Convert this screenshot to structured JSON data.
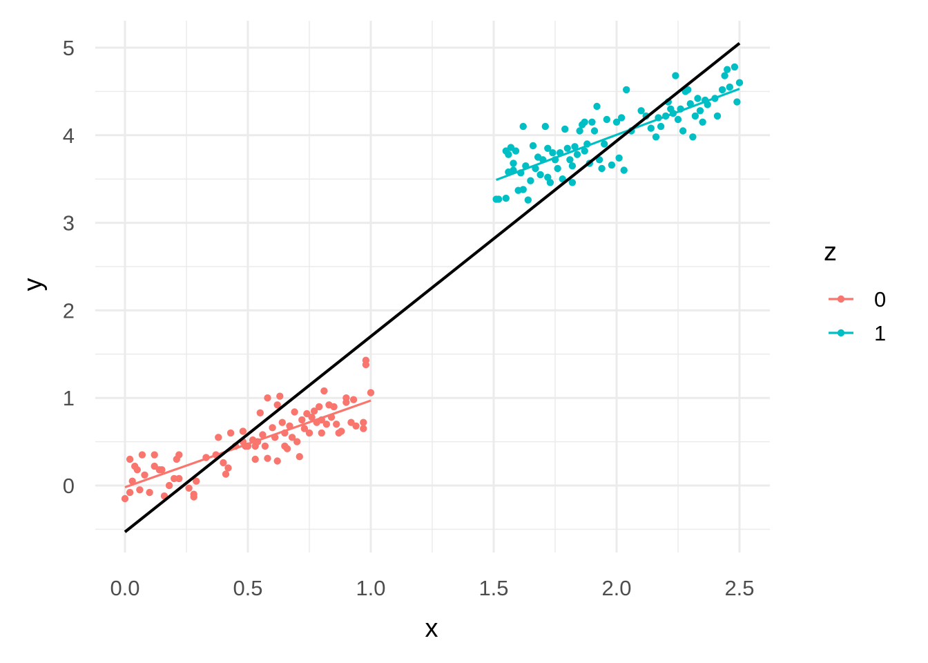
{
  "chart_data": {
    "type": "scatter",
    "xlabel": "x",
    "ylabel": "y",
    "xlim": [
      -0.13,
      2.62
    ],
    "ylim": [
      -0.72,
      5.32
    ],
    "x_ticks": [
      0.0,
      0.5,
      1.0,
      1.5,
      2.0,
      2.5
    ],
    "x_tick_labels": [
      "0.0",
      "0.5",
      "1.0",
      "1.5",
      "2.0",
      "2.5"
    ],
    "y_ticks": [
      0,
      1,
      2,
      3,
      4,
      5
    ],
    "y_tick_labels": [
      "0",
      "1",
      "2",
      "3",
      "4",
      "5"
    ],
    "grid": true,
    "legend": {
      "title": "z",
      "position": "right",
      "entries": [
        "0",
        "1"
      ]
    },
    "colors": {
      "0": "#F8766D",
      "1": "#00BFC4",
      "overall_line": "#000000"
    },
    "overall_fit": {
      "x": [
        0.0,
        2.5
      ],
      "y": [
        -0.53,
        5.05
      ]
    },
    "series": [
      {
        "name": "0",
        "color": "#F8766D",
        "fit": {
          "x": [
            0.0,
            1.0
          ],
          "y": [
            -0.02,
            0.97
          ]
        },
        "points": [
          [
            0.0,
            -0.15
          ],
          [
            0.02,
            0.3
          ],
          [
            0.02,
            -0.08
          ],
          [
            0.03,
            0.05
          ],
          [
            0.04,
            0.22
          ],
          [
            0.05,
            0.18
          ],
          [
            0.06,
            -0.05
          ],
          [
            0.07,
            0.35
          ],
          [
            0.08,
            0.12
          ],
          [
            0.1,
            -0.08
          ],
          [
            0.12,
            0.22
          ],
          [
            0.12,
            0.35
          ],
          [
            0.14,
            0.18
          ],
          [
            0.15,
            0.18
          ],
          [
            0.16,
            -0.12
          ],
          [
            0.18,
            0.0
          ],
          [
            0.2,
            0.08
          ],
          [
            0.21,
            0.3
          ],
          [
            0.22,
            0.35
          ],
          [
            0.22,
            0.08
          ],
          [
            0.26,
            -0.03
          ],
          [
            0.28,
            -0.1
          ],
          [
            0.28,
            -0.13
          ],
          [
            0.29,
            0.05
          ],
          [
            0.33,
            0.32
          ],
          [
            0.37,
            0.35
          ],
          [
            0.38,
            0.55
          ],
          [
            0.4,
            0.26
          ],
          [
            0.41,
            0.13
          ],
          [
            0.42,
            0.2
          ],
          [
            0.43,
            0.6
          ],
          [
            0.45,
            0.45
          ],
          [
            0.48,
            0.5
          ],
          [
            0.48,
            0.62
          ],
          [
            0.49,
            0.45
          ],
          [
            0.5,
            0.45
          ],
          [
            0.52,
            0.52
          ],
          [
            0.53,
            0.45
          ],
          [
            0.53,
            0.3
          ],
          [
            0.54,
            0.5
          ],
          [
            0.55,
            0.83
          ],
          [
            0.56,
            0.58
          ],
          [
            0.57,
            0.45
          ],
          [
            0.58,
            1.0
          ],
          [
            0.58,
            0.31
          ],
          [
            0.6,
            0.66
          ],
          [
            0.61,
            0.55
          ],
          [
            0.62,
            0.28
          ],
          [
            0.62,
            0.92
          ],
          [
            0.63,
            1.02
          ],
          [
            0.64,
            0.72
          ],
          [
            0.65,
            0.6
          ],
          [
            0.65,
            0.45
          ],
          [
            0.66,
            0.42
          ],
          [
            0.67,
            0.68
          ],
          [
            0.68,
            0.55
          ],
          [
            0.69,
            0.84
          ],
          [
            0.7,
            0.5
          ],
          [
            0.71,
            0.33
          ],
          [
            0.72,
            0.75
          ],
          [
            0.73,
            0.65
          ],
          [
            0.74,
            0.82
          ],
          [
            0.75,
            0.6
          ],
          [
            0.76,
            0.78
          ],
          [
            0.77,
            0.85
          ],
          [
            0.78,
            0.72
          ],
          [
            0.79,
            0.9
          ],
          [
            0.8,
            0.75
          ],
          [
            0.8,
            0.6
          ],
          [
            0.81,
            1.08
          ],
          [
            0.82,
            0.7
          ],
          [
            0.83,
            0.92
          ],
          [
            0.84,
            0.78
          ],
          [
            0.85,
            0.9
          ],
          [
            0.86,
            0.7
          ],
          [
            0.87,
            0.6
          ],
          [
            0.88,
            0.62
          ],
          [
            0.9,
            1.0
          ],
          [
            0.9,
            0.95
          ],
          [
            0.92,
            0.72
          ],
          [
            0.93,
            0.98
          ],
          [
            0.94,
            0.68
          ],
          [
            0.97,
            0.65
          ],
          [
            0.97,
            0.72
          ],
          [
            0.98,
            1.43
          ],
          [
            0.98,
            1.38
          ],
          [
            1.0,
            1.06
          ]
        ]
      },
      {
        "name": "1",
        "color": "#00BFC4",
        "fit": {
          "x": [
            1.51,
            2.5
          ],
          "y": [
            3.49,
            4.53
          ]
        },
        "points": [
          [
            1.51,
            3.27
          ],
          [
            1.52,
            3.27
          ],
          [
            1.55,
            3.28
          ],
          [
            1.55,
            3.82
          ],
          [
            1.56,
            3.78
          ],
          [
            1.56,
            3.58
          ],
          [
            1.57,
            3.86
          ],
          [
            1.58,
            3.68
          ],
          [
            1.58,
            3.6
          ],
          [
            1.59,
            3.82
          ],
          [
            1.6,
            3.37
          ],
          [
            1.61,
            3.57
          ],
          [
            1.62,
            4.1
          ],
          [
            1.62,
            3.38
          ],
          [
            1.63,
            3.65
          ],
          [
            1.64,
            3.26
          ],
          [
            1.65,
            3.48
          ],
          [
            1.66,
            3.88
          ],
          [
            1.67,
            3.62
          ],
          [
            1.68,
            3.75
          ],
          [
            1.69,
            3.55
          ],
          [
            1.7,
            3.72
          ],
          [
            1.71,
            4.1
          ],
          [
            1.72,
            3.85
          ],
          [
            1.72,
            3.52
          ],
          [
            1.73,
            3.46
          ],
          [
            1.74,
            3.8
          ],
          [
            1.75,
            3.72
          ],
          [
            1.76,
            3.62
          ],
          [
            1.77,
            3.8
          ],
          [
            1.78,
            3.5
          ],
          [
            1.79,
            4.07
          ],
          [
            1.8,
            3.85
          ],
          [
            1.81,
            3.72
          ],
          [
            1.82,
            3.65
          ],
          [
            1.82,
            3.46
          ],
          [
            1.83,
            3.87
          ],
          [
            1.84,
            3.78
          ],
          [
            1.85,
            4.05
          ],
          [
            1.86,
            4.12
          ],
          [
            1.87,
            3.82
          ],
          [
            1.87,
            4.15
          ],
          [
            1.88,
            3.9
          ],
          [
            1.89,
            3.68
          ],
          [
            1.9,
            4.15
          ],
          [
            1.91,
            4.05
          ],
          [
            1.92,
            4.33
          ],
          [
            1.93,
            3.72
          ],
          [
            1.94,
            3.62
          ],
          [
            1.95,
            3.9
          ],
          [
            1.96,
            4.18
          ],
          [
            1.98,
            3.66
          ],
          [
            2.0,
            4.15
          ],
          [
            2.01,
            3.74
          ],
          [
            2.02,
            4.2
          ],
          [
            2.03,
            3.6
          ],
          [
            2.04,
            4.52
          ],
          [
            2.06,
            4.05
          ],
          [
            2.1,
            4.28
          ],
          [
            2.12,
            4.22
          ],
          [
            2.14,
            4.08
          ],
          [
            2.16,
            3.98
          ],
          [
            2.17,
            4.2
          ],
          [
            2.18,
            4.1
          ],
          [
            2.2,
            4.22
          ],
          [
            2.21,
            4.38
          ],
          [
            2.22,
            4.3
          ],
          [
            2.23,
            4.25
          ],
          [
            2.24,
            4.68
          ],
          [
            2.25,
            4.18
          ],
          [
            2.26,
            4.3
          ],
          [
            2.27,
            4.05
          ],
          [
            2.28,
            4.5
          ],
          [
            2.29,
            4.52
          ],
          [
            2.3,
            4.36
          ],
          [
            2.31,
            3.98
          ],
          [
            2.32,
            4.22
          ],
          [
            2.33,
            4.42
          ],
          [
            2.34,
            4.28
          ],
          [
            2.35,
            4.15
          ],
          [
            2.36,
            4.4
          ],
          [
            2.37,
            4.35
          ],
          [
            2.4,
            4.42
          ],
          [
            2.41,
            4.22
          ],
          [
            2.43,
            4.52
          ],
          [
            2.44,
            4.68
          ],
          [
            2.45,
            4.75
          ],
          [
            2.46,
            4.55
          ],
          [
            2.48,
            4.78
          ],
          [
            2.49,
            4.38
          ],
          [
            2.5,
            4.6
          ]
        ]
      }
    ]
  }
}
